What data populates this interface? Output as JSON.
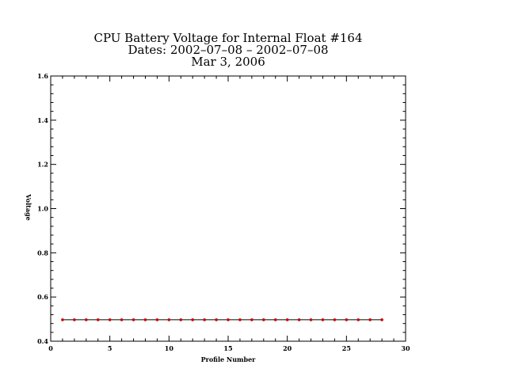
{
  "chart_data": {
    "type": "line",
    "title_lines": [
      "CPU Battery Voltage for Internal Float #164",
      "Dates:  2002–07–08 –  2002–07–08",
      "Mar  3, 2006"
    ],
    "xlabel": "Profile Number",
    "ylabel": "Voltage",
    "xlim": [
      0,
      30
    ],
    "ylim": [
      0.4,
      1.6
    ],
    "x_ticks": [
      0,
      5,
      10,
      15,
      20,
      25,
      30
    ],
    "y_ticks": [
      0.4,
      0.6,
      0.8,
      1.0,
      1.2,
      1.4,
      1.6
    ],
    "x_tick_labels": [
      "0",
      "5",
      "10",
      "15",
      "20",
      "25",
      "30"
    ],
    "y_tick_labels": [
      "0.4",
      "0.6",
      "0.8",
      "1.0",
      "1.2",
      "1.4",
      "1.6"
    ],
    "grid": false,
    "series": [
      {
        "color": "#cc0000",
        "line_color": "#000000",
        "x": [
          1,
          2,
          3,
          4,
          5,
          6,
          7,
          8,
          9,
          10,
          11,
          12,
          13,
          14,
          15,
          16,
          17,
          18,
          19,
          20,
          21,
          22,
          23,
          24,
          25,
          26,
          27,
          28
        ],
        "y": [
          0.497,
          0.497,
          0.497,
          0.497,
          0.497,
          0.497,
          0.497,
          0.497,
          0.497,
          0.497,
          0.497,
          0.497,
          0.497,
          0.497,
          0.497,
          0.497,
          0.497,
          0.497,
          0.497,
          0.497,
          0.497,
          0.497,
          0.497,
          0.497,
          0.497,
          0.497,
          0.497,
          0.497
        ]
      }
    ]
  }
}
